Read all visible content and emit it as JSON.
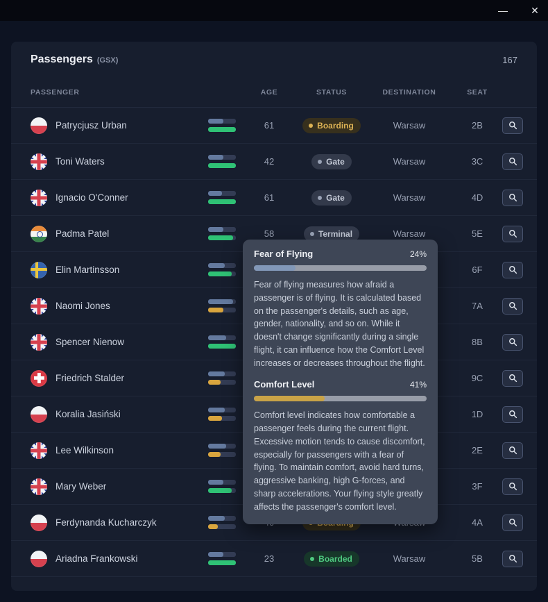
{
  "window": {
    "minimize_glyph": "—",
    "close_glyph": "✕"
  },
  "panel": {
    "title": "Passengers",
    "subtitle": "(GSX)",
    "count": "167"
  },
  "table": {
    "headers": [
      "PASSENGER",
      "AGE",
      "STATUS",
      "DESTINATION",
      "SEAT"
    ],
    "rows": [
      {
        "name": "Patrycjusz Urban",
        "flag": "poland",
        "fear": 55,
        "comfort": 100,
        "comfort_color": "green",
        "age": "61",
        "status": "Boarding",
        "status_class": "boarding",
        "destination": "Warsaw",
        "seat": "2B"
      },
      {
        "name": "Toni Waters",
        "flag": "uk",
        "fear": 55,
        "comfort": 100,
        "comfort_color": "green",
        "age": "42",
        "status": "Gate",
        "status_class": "gate",
        "destination": "Warsaw",
        "seat": "3C"
      },
      {
        "name": "Ignacio O'Conner",
        "flag": "uk",
        "fear": 50,
        "comfort": 100,
        "comfort_color": "green",
        "age": "61",
        "status": "Gate",
        "status_class": "gate",
        "destination": "Warsaw",
        "seat": "4D"
      },
      {
        "name": "Padma Patel",
        "flag": "india",
        "fear": 55,
        "comfort": 90,
        "comfort_color": "green",
        "age": "58",
        "status": "Terminal",
        "status_class": "terminal",
        "destination": "Warsaw",
        "seat": "5E"
      },
      {
        "name": "Elin Martinsson",
        "flag": "sweden",
        "fear": 60,
        "comfort": 85,
        "comfort_color": "green",
        "age": "",
        "status": "",
        "status_class": "hidden",
        "destination": "",
        "seat": "6F"
      },
      {
        "name": "Naomi Jones",
        "flag": "uk",
        "fear": 90,
        "comfort": 55,
        "comfort_color": "yellow",
        "age": "",
        "status": "",
        "status_class": "hidden",
        "destination": "",
        "seat": "7A"
      },
      {
        "name": "Spencer Nienow",
        "flag": "uk",
        "fear": 65,
        "comfort": 100,
        "comfort_color": "green",
        "age": "",
        "status": "",
        "status_class": "hidden",
        "destination": "",
        "seat": "8B"
      },
      {
        "name": "Friedrich Stalder",
        "flag": "switzerland",
        "fear": 60,
        "comfort": 45,
        "comfort_color": "yellow",
        "age": "",
        "status": "",
        "status_class": "hidden",
        "destination": "",
        "seat": "9C"
      },
      {
        "name": "Koralia Jasiński",
        "flag": "poland",
        "fear": 60,
        "comfort": 50,
        "comfort_color": "yellow",
        "age": "",
        "status": "",
        "status_class": "hidden",
        "destination": "",
        "seat": "1D"
      },
      {
        "name": "Lee Wilkinson",
        "flag": "uk",
        "fear": 65,
        "comfort": 45,
        "comfort_color": "yellow",
        "age": "",
        "status": "",
        "status_class": "hidden",
        "destination": "",
        "seat": "2E"
      },
      {
        "name": "Mary Weber",
        "flag": "uk",
        "fear": 55,
        "comfort": 85,
        "comfort_color": "green",
        "age": "",
        "status": "",
        "status_class": "hidden",
        "destination": "",
        "seat": "3F"
      },
      {
        "name": "Ferdynanda Kucharczyk",
        "flag": "poland",
        "fear": 60,
        "comfort": 35,
        "comfort_color": "yellow",
        "age": "40",
        "status": "Boarding",
        "status_class": "boarding",
        "destination": "Warsaw",
        "seat": "4A"
      },
      {
        "name": "Ariadna Frankowski",
        "flag": "poland",
        "fear": 55,
        "comfort": 100,
        "comfort_color": "green",
        "age": "23",
        "status": "Boarded",
        "status_class": "boarded",
        "destination": "Warsaw",
        "seat": "5B"
      }
    ]
  },
  "tooltip": {
    "sections": [
      {
        "title": "Fear of Flying",
        "value": "24%",
        "percent": 24,
        "description": "Fear of flying measures how afraid a passenger is of flying. It is calculated based on the passenger's details, such as age, gender, nationality, and so on. While it doesn't change significantly during a single flight, it can influence how the Comfort Level increases or decreases throughout the flight."
      },
      {
        "title": "Comfort Level",
        "value": "41%",
        "percent": 41,
        "description": "Comfort level indicates how comfortable a passenger feels during the current flight. Excessive motion tends to cause discomfort, especially for passengers with a fear of flying. To maintain comfort, avoid hard turns, aggressive banking, high G-forces, and sharp accelerations. Your flying style greatly affects the passenger's comfort level."
      }
    ]
  },
  "colors": {
    "boarding_accent": "#dcb254",
    "boarded_accent": "#4ec980",
    "neutral_badge": "#333a4b",
    "fear_bar": "#647a9f",
    "comfort_green": "#2fc275",
    "comfort_yellow": "#d9a53e",
    "tooltip_bg": "#3e4656",
    "panel_bg": "#171e2e",
    "page_bg": "#0d1322"
  }
}
